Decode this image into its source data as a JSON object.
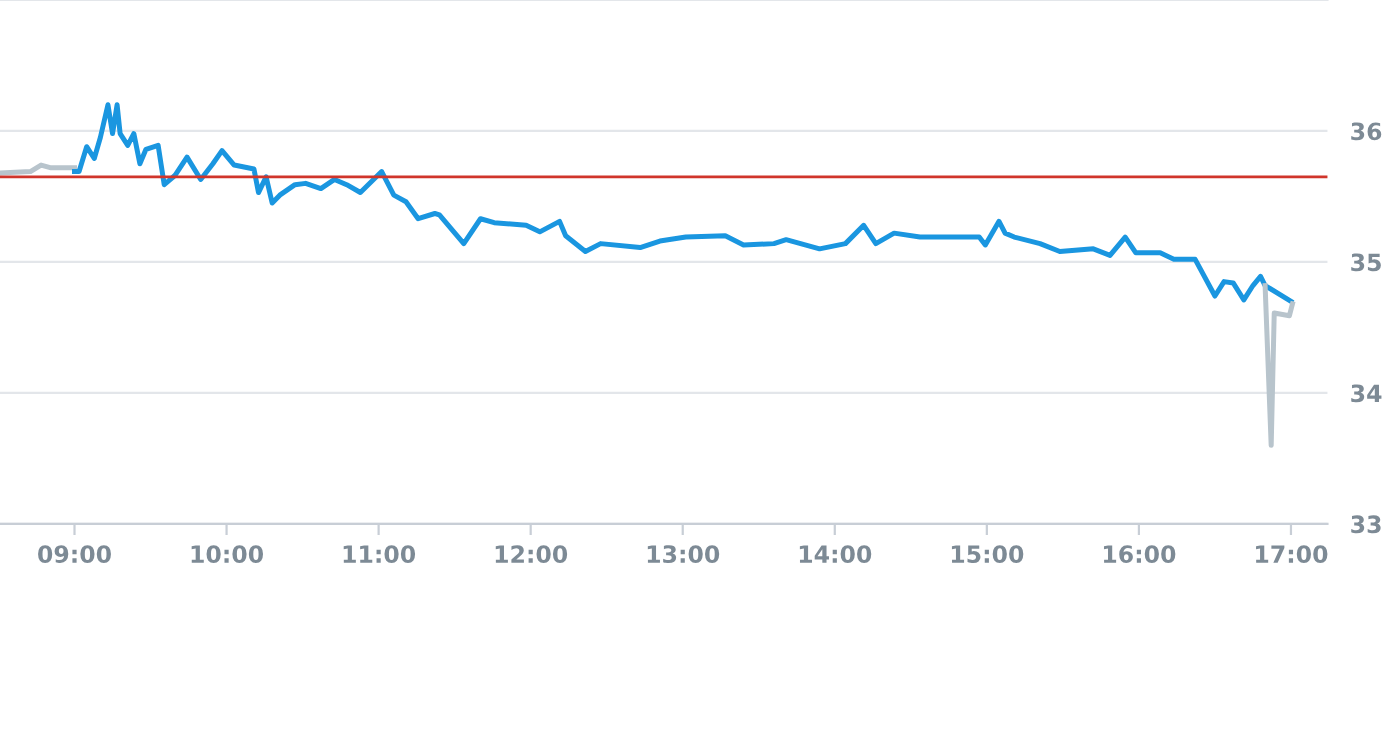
{
  "chart_data": {
    "type": "line",
    "xlim": [
      8.51,
      17.24
    ],
    "ylim": [
      33,
      37
    ],
    "xticks": [
      {
        "value": 9,
        "label": "09:00"
      },
      {
        "value": 10,
        "label": "10:00"
      },
      {
        "value": 11,
        "label": "11:00"
      },
      {
        "value": 12,
        "label": "12:00"
      },
      {
        "value": 13,
        "label": "13:00"
      },
      {
        "value": 14,
        "label": "14:00"
      },
      {
        "value": 15,
        "label": "15:00"
      },
      {
        "value": 16,
        "label": "16:00"
      },
      {
        "value": 17,
        "label": "17:00"
      }
    ],
    "yticks": [
      33,
      34,
      35,
      36
    ],
    "grid": "y",
    "marker": "none",
    "line_style": "solid",
    "ref_lines": [
      {
        "axis": "y",
        "value": 35.65,
        "color": "#d0352b"
      }
    ],
    "series": [
      {
        "color": "#b8c4cc",
        "x": [
          8.51,
          8.71,
          8.78,
          8.84,
          9.0
        ],
        "values": [
          35.68,
          35.69,
          35.74,
          35.72,
          35.72
        ]
      },
      {
        "color": "#1a96e0",
        "x": [
          9.0,
          9.03,
          9.08,
          9.13,
          9.17,
          9.22,
          9.25,
          9.28,
          9.3,
          9.35,
          9.39,
          9.43,
          9.47,
          9.55,
          9.59,
          9.66,
          9.74,
          9.83,
          9.91,
          9.97,
          10.05,
          10.18,
          10.21,
          10.26,
          10.3,
          10.35,
          10.45,
          10.52,
          10.62,
          10.71,
          10.79,
          10.88,
          11.02,
          11.1,
          11.18,
          11.26,
          11.37,
          11.4,
          11.56,
          11.67,
          11.76,
          11.97,
          12.06,
          12.19,
          12.23,
          12.36,
          12.46,
          12.72,
          12.85,
          13.02,
          13.28,
          13.4,
          13.6,
          13.68,
          13.9,
          14.07,
          14.19,
          14.27,
          14.39,
          14.56,
          14.95,
          14.99,
          15.08,
          15.12,
          15.18,
          15.35,
          15.48,
          15.7,
          15.81,
          15.91,
          15.98,
          16.14,
          16.23,
          16.37,
          16.5,
          16.56,
          16.62,
          16.69,
          16.75,
          16.8,
          16.83,
          17.0
        ],
        "values": [
          35.69,
          35.69,
          35.88,
          35.79,
          35.95,
          36.2,
          35.98,
          36.2,
          35.98,
          35.89,
          35.98,
          35.75,
          35.86,
          35.89,
          35.59,
          35.66,
          35.8,
          35.63,
          35.75,
          35.85,
          35.74,
          35.71,
          35.53,
          35.65,
          35.45,
          35.51,
          35.59,
          35.6,
          35.56,
          35.63,
          35.59,
          35.53,
          35.69,
          35.51,
          35.46,
          35.33,
          35.37,
          35.36,
          35.14,
          35.33,
          35.3,
          35.28,
          35.23,
          35.31,
          35.2,
          35.08,
          35.14,
          35.11,
          35.16,
          35.19,
          35.2,
          35.13,
          35.14,
          35.17,
          35.1,
          35.14,
          35.28,
          35.14,
          35.22,
          35.19,
          35.19,
          35.13,
          35.31,
          35.22,
          35.19,
          35.14,
          35.08,
          35.1,
          35.05,
          35.19,
          35.07,
          35.07,
          35.02,
          35.02,
          34.74,
          34.85,
          34.84,
          34.71,
          34.82,
          34.89,
          34.82,
          34.7
        ]
      },
      {
        "color": "#b8c4cc",
        "x": [
          16.83,
          16.87,
          16.89,
          16.99,
          17.01
        ],
        "values": [
          34.82,
          33.6,
          34.61,
          34.59,
          34.68
        ]
      }
    ]
  }
}
